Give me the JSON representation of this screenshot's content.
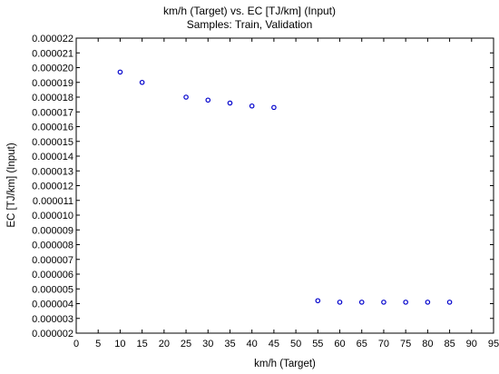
{
  "chart_data": {
    "type": "scatter",
    "title": "km/h (Target) vs. EC [TJ/km] (Input)",
    "subtitle": "Samples: Train, Validation",
    "xlabel": "km/h (Target)",
    "ylabel": "EC [TJ/km] (Input)",
    "xlim": [
      0,
      95
    ],
    "ylim": [
      2e-06,
      2.2e-05
    ],
    "x_ticks": [
      "0",
      "5",
      "10",
      "15",
      "20",
      "25",
      "30",
      "35",
      "40",
      "45",
      "50",
      "55",
      "60",
      "65",
      "70",
      "75",
      "80",
      "85",
      "90",
      "95"
    ],
    "y_ticks": [
      "0.000002",
      "0.000003",
      "0.000004",
      "0.000005",
      "0.000006",
      "0.000007",
      "0.000008",
      "0.000009",
      "0.000010",
      "0.000011",
      "0.000012",
      "0.000013",
      "0.000014",
      "0.000015",
      "0.000016",
      "0.000017",
      "0.000018",
      "0.000019",
      "0.000020",
      "0.000021",
      "0.000022"
    ],
    "grid": false,
    "marker_color": "#0000cc",
    "points": [
      {
        "x": 10,
        "y": 1.97e-05
      },
      {
        "x": 15,
        "y": 1.9e-05
      },
      {
        "x": 25,
        "y": 1.8e-05
      },
      {
        "x": 30,
        "y": 1.78e-05
      },
      {
        "x": 35,
        "y": 1.76e-05
      },
      {
        "x": 40,
        "y": 1.74e-05
      },
      {
        "x": 45,
        "y": 1.73e-05
      },
      {
        "x": 55,
        "y": 4.2e-06
      },
      {
        "x": 60,
        "y": 4.1e-06
      },
      {
        "x": 65,
        "y": 4.1e-06
      },
      {
        "x": 70,
        "y": 4.1e-06
      },
      {
        "x": 75,
        "y": 4.1e-06
      },
      {
        "x": 80,
        "y": 4.1e-06
      },
      {
        "x": 85,
        "y": 4.1e-06
      }
    ]
  }
}
